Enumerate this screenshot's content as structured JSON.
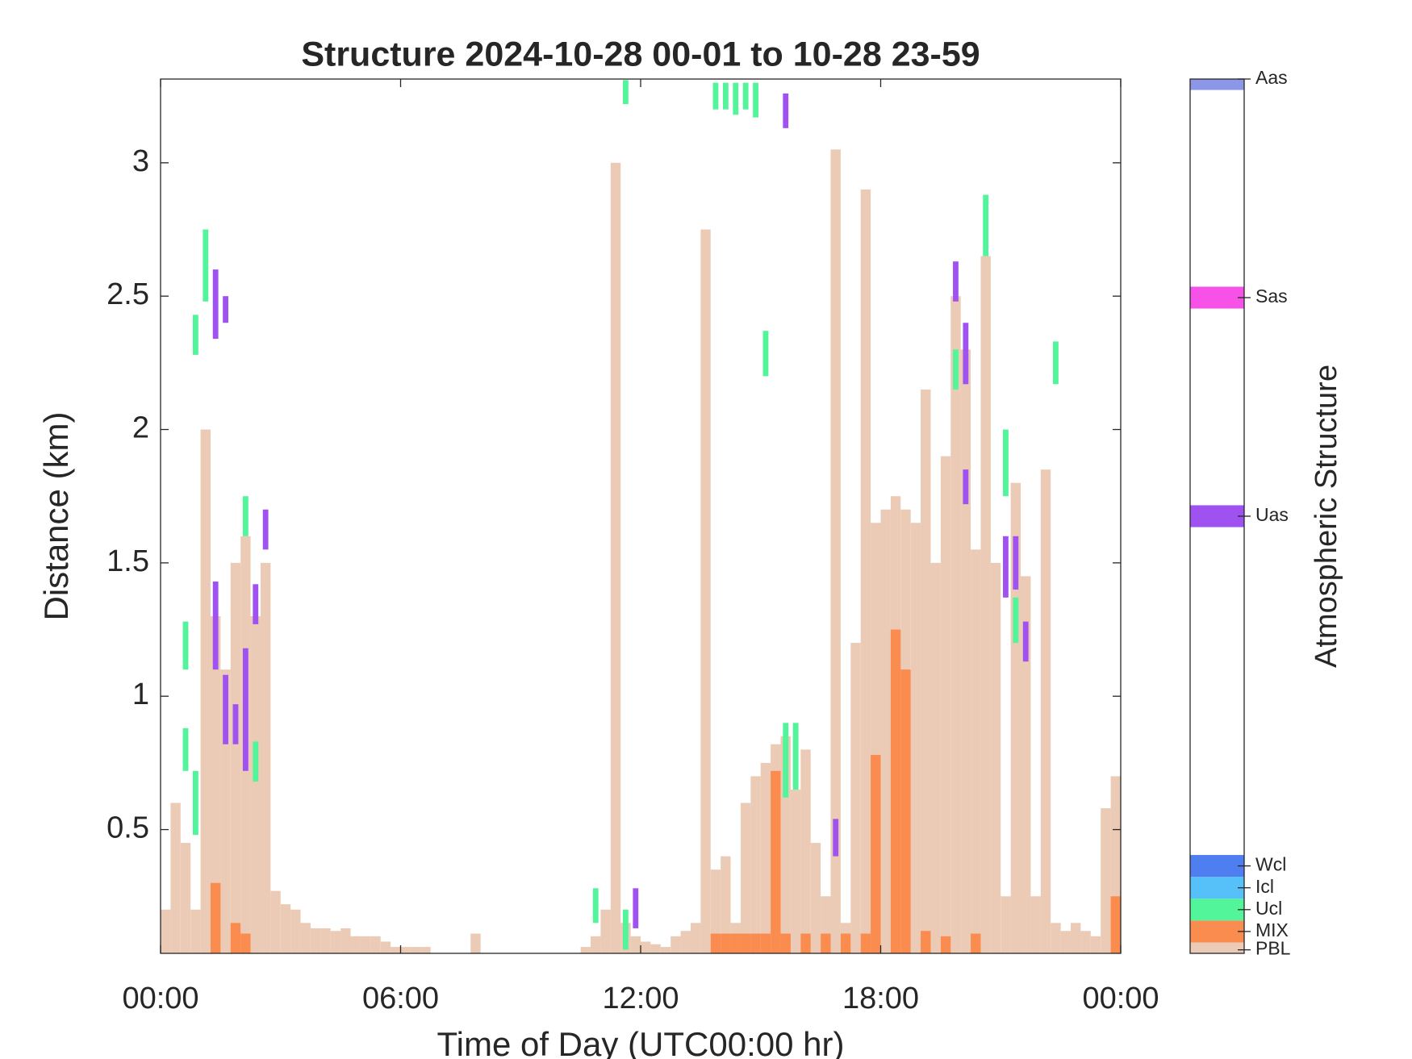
{
  "chart_data": {
    "type": "bar",
    "title": "Structure 2024-10-28 00-01 to 10-28 23-59",
    "x_label": "Time of Day (UTC00:00 hr)",
    "y_label": "Distance (km)",
    "xlim": [
      0,
      24
    ],
    "xticks": [
      {
        "value": 0,
        "label": "00:00"
      },
      {
        "value": 6,
        "label": "06:00"
      },
      {
        "value": 12,
        "label": "12:00"
      },
      {
        "value": 18,
        "label": "18:00"
      },
      {
        "value": 24,
        "label": "00:00"
      }
    ],
    "ylim": [
      0.036,
      3.314
    ],
    "yticks": [
      0.5,
      1,
      1.5,
      2,
      2.5,
      3
    ],
    "colorbar": {
      "label": "Atmospheric Structure",
      "lim": [
        0,
        100
      ]
    },
    "series": [
      {
        "name": "PBL",
        "color": "#ebcbb5",
        "level": 0.4,
        "x": [
          0,
          0.25,
          0.5,
          0.75,
          1,
          1.25,
          1.5,
          1.75,
          2,
          2.25,
          2.5,
          2.75,
          3,
          3.25,
          3.5,
          3.75,
          4,
          4.25,
          4.5,
          4.75,
          5,
          5.25,
          5.5,
          5.75,
          6,
          6.25,
          6.5,
          6.75,
          7,
          7.25,
          7.5,
          7.75,
          8,
          8.25,
          8.5,
          8.75,
          9,
          9.25,
          9.5,
          9.75,
          10,
          10.25,
          10.5,
          10.75,
          11,
          11.25,
          11.5,
          11.75,
          12,
          12.25,
          12.5,
          12.75,
          13,
          13.25,
          13.5,
          13.75,
          14,
          14.25,
          14.5,
          14.75,
          15,
          15.25,
          15.5,
          15.75,
          16,
          16.25,
          16.5,
          16.75,
          17,
          17.25,
          17.5,
          17.75,
          18,
          18.25,
          18.5,
          18.75,
          19,
          19.25,
          19.5,
          19.75,
          20,
          20.25,
          20.5,
          20.75,
          21,
          21.25,
          21.5,
          21.75,
          22,
          22.25,
          22.5,
          22.75,
          23,
          23.25,
          23.5,
          23.75
        ],
        "values": [
          0.2,
          0.6,
          0.45,
          0.2,
          2.0,
          1.3,
          1.1,
          1.5,
          1.6,
          1.3,
          1.5,
          0.27,
          0.22,
          0.2,
          0.15,
          0.13,
          0.13,
          0.12,
          0.13,
          0.1,
          0.1,
          0.1,
          0.08,
          0.06,
          0.06,
          0.06,
          0.06,
          null,
          null,
          null,
          null,
          0.11,
          null,
          null,
          null,
          null,
          null,
          null,
          null,
          null,
          null,
          null,
          0.06,
          0.1,
          0.2,
          3.0,
          0.15,
          0.1,
          0.08,
          0.07,
          0.06,
          0.1,
          0.12,
          0.15,
          2.75,
          0.35,
          0.4,
          0.15,
          0.6,
          0.7,
          0.75,
          0.82,
          0.85,
          0.65,
          0.8,
          0.45,
          0.25,
          3.05,
          0.15,
          1.2,
          2.9,
          1.65,
          1.7,
          1.75,
          1.7,
          1.65,
          2.15,
          1.5,
          1.9,
          2.5,
          2.3,
          1.55,
          2.65,
          1.5,
          0.25,
          1.8,
          1.45,
          0.25,
          1.85,
          0.15,
          0.12,
          0.15,
          0.12,
          0.1,
          0.58,
          0.7
        ]
      },
      {
        "name": "MIX",
        "color": "#fa8c50",
        "level": 2.5,
        "x": [
          1.25,
          1.75,
          2.0,
          13.75,
          14.0,
          14.25,
          14.5,
          14.75,
          15.0,
          15.25,
          15.5,
          16.0,
          16.5,
          17.0,
          17.5,
          17.75,
          18.25,
          18.5,
          19.0,
          19.5,
          20.25,
          23.75
        ],
        "values": [
          0.3,
          0.15,
          0.11,
          0.11,
          0.11,
          0.11,
          0.11,
          0.11,
          0.11,
          0.72,
          0.11,
          0.11,
          0.11,
          0.11,
          0.11,
          0.78,
          1.25,
          1.1,
          0.12,
          0.1,
          0.11,
          0.25
        ]
      },
      {
        "name": "Ucl",
        "color": "#52f59a",
        "level": 5,
        "x": [
          0.5,
          0.5,
          0.75,
          0.75,
          1.0,
          2.0,
          2.25,
          10.75,
          11.5,
          11.5,
          13.75,
          14.0,
          14.25,
          14.5,
          14.75,
          15.0,
          15.5,
          15.75,
          19.75,
          20.5,
          21.0,
          21.25,
          22.25
        ],
        "values": [
          1.28,
          0.88,
          0.72,
          2.43,
          2.75,
          1.75,
          0.83,
          0.28,
          0.2,
          3.31,
          3.3,
          3.3,
          3.3,
          3.3,
          3.3,
          2.37,
          0.9,
          0.9,
          2.3,
          2.88,
          2.0,
          1.37,
          2.33
        ],
        "base": [
          1.1,
          0.72,
          0.48,
          2.28,
          2.48,
          1.6,
          0.68,
          0.15,
          0.05,
          3.22,
          3.2,
          3.2,
          3.18,
          3.2,
          3.17,
          2.2,
          0.62,
          0.65,
          2.15,
          2.65,
          1.75,
          1.2,
          2.17
        ]
      },
      {
        "name": "Icl",
        "color": "#55c1f8",
        "level": 7.5,
        "x": [],
        "values": [],
        "base": []
      },
      {
        "name": "Wcl",
        "color": "#4f7ef0",
        "level": 10,
        "x": [],
        "values": [],
        "base": []
      },
      {
        "name": "Uas",
        "color": "#a052f0",
        "level": 50,
        "x": [
          1.25,
          1.25,
          1.5,
          1.5,
          1.75,
          2.0,
          2.25,
          2.5,
          11.75,
          15.5,
          16.75,
          19.75,
          20.0,
          20.0,
          21.0,
          21.25,
          21.5
        ],
        "values": [
          1.43,
          2.6,
          2.5,
          1.08,
          0.97,
          1.18,
          1.42,
          1.7,
          0.28,
          3.26,
          0.54,
          2.63,
          2.4,
          1.85,
          1.6,
          1.6,
          1.28
        ],
        "base": [
          1.1,
          2.34,
          2.4,
          0.82,
          0.82,
          0.72,
          1.27,
          1.55,
          0.13,
          3.13,
          0.4,
          2.48,
          2.17,
          1.72,
          1.37,
          1.4,
          1.13
        ]
      },
      {
        "name": "Sas",
        "color": "#f752e8",
        "level": 75,
        "x": [],
        "values": [],
        "base": []
      },
      {
        "name": "Aas",
        "color": "#8c97e8",
        "level": 100,
        "x": [],
        "values": [],
        "base": []
      }
    ]
  }
}
